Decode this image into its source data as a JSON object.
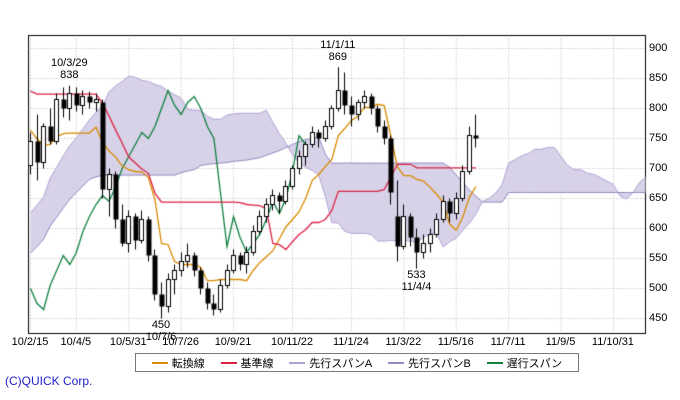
{
  "footer": {
    "copyright": "(C)QUICK Corp.",
    "color": "#2020cc"
  },
  "chart_data": {
    "type": "candlestick",
    "indicator": "ichimoku",
    "period": "weekly",
    "grid": true,
    "grid_color": "#b4b4b4",
    "cloud_color": "#d8d2e8",
    "candle_colors": {
      "up_fill": "#ffffff",
      "down_fill": "#000000",
      "stroke": "#000000"
    },
    "y_axis_side": "right",
    "y_ticks": [
      900,
      850,
      800,
      750,
      700,
      650,
      600,
      550,
      500,
      450
    ],
    "ylim": [
      425,
      920
    ],
    "x_ticks": [
      {
        "week": 0,
        "label": "10/2/15"
      },
      {
        "week": 7,
        "label": "10/4/5"
      },
      {
        "week": 15,
        "label": "10/5/31"
      },
      {
        "week": 23,
        "label": "10/7/26"
      },
      {
        "week": 31,
        "label": "10/9/21"
      },
      {
        "week": 40,
        "label": "10/11/22"
      },
      {
        "week": 49,
        "label": "11/1/24"
      },
      {
        "week": 57,
        "label": "11/3/22"
      },
      {
        "week": 65,
        "label": "11/5/16"
      },
      {
        "week": 73,
        "label": "11/7/11"
      },
      {
        "week": 81,
        "label": "11/9/5"
      },
      {
        "week": 89,
        "label": "11/10/31"
      }
    ],
    "annotations": [
      {
        "week": 6,
        "price": 838,
        "placement": "above",
        "lines": [
          "10/3/29",
          "838"
        ]
      },
      {
        "week": 47,
        "price": 869,
        "placement": "above",
        "lines": [
          "11/1/11",
          "869"
        ]
      },
      {
        "week": 20,
        "price": 450,
        "placement": "below",
        "lines": [
          "450",
          "10/7/6"
        ]
      },
      {
        "week": 59,
        "price": 533,
        "placement": "below",
        "lines": [
          "533",
          "11/4/4"
        ]
      }
    ],
    "candles": [
      [
        705,
        760,
        690,
        745
      ],
      [
        745,
        790,
        680,
        710
      ],
      [
        710,
        775,
        700,
        770
      ],
      [
        770,
        800,
        740,
        745
      ],
      [
        745,
        825,
        740,
        815
      ],
      [
        815,
        835,
        785,
        800
      ],
      [
        800,
        838,
        780,
        825
      ],
      [
        825,
        835,
        795,
        805
      ],
      [
        805,
        830,
        790,
        820
      ],
      [
        820,
        828,
        800,
        810
      ],
      [
        810,
        825,
        795,
        815
      ],
      [
        810,
        815,
        650,
        665
      ],
      [
        665,
        700,
        620,
        690
      ],
      [
        690,
        695,
        600,
        615
      ],
      [
        615,
        640,
        570,
        575
      ],
      [
        575,
        630,
        560,
        620
      ],
      [
        620,
        625,
        565,
        580
      ],
      [
        580,
        630,
        575,
        615
      ],
      [
        615,
        620,
        545,
        555
      ],
      [
        555,
        565,
        480,
        490
      ],
      [
        490,
        510,
        450,
        470
      ],
      [
        470,
        525,
        460,
        515
      ],
      [
        515,
        540,
        490,
        530
      ],
      [
        530,
        560,
        520,
        545
      ],
      [
        545,
        575,
        535,
        555
      ],
      [
        555,
        560,
        520,
        530
      ],
      [
        530,
        535,
        490,
        500
      ],
      [
        500,
        510,
        465,
        475
      ],
      [
        475,
        490,
        455,
        465
      ],
      [
        465,
        515,
        460,
        505
      ],
      [
        505,
        540,
        500,
        530
      ],
      [
        530,
        565,
        525,
        555
      ],
      [
        555,
        560,
        530,
        540
      ],
      [
        540,
        570,
        525,
        560
      ],
      [
        560,
        605,
        555,
        595
      ],
      [
        595,
        630,
        590,
        620
      ],
      [
        620,
        650,
        610,
        640
      ],
      [
        640,
        665,
        630,
        655
      ],
      [
        655,
        660,
        625,
        645
      ],
      [
        645,
        680,
        640,
        670
      ],
      [
        670,
        705,
        665,
        700
      ],
      [
        700,
        730,
        690,
        720
      ],
      [
        720,
        745,
        705,
        740
      ],
      [
        740,
        770,
        735,
        760
      ],
      [
        760,
        765,
        735,
        750
      ],
      [
        750,
        780,
        745,
        770
      ],
      [
        770,
        805,
        765,
        800
      ],
      [
        800,
        869,
        795,
        830
      ],
      [
        830,
        860,
        790,
        805
      ],
      [
        805,
        820,
        770,
        790
      ],
      [
        790,
        815,
        780,
        810
      ],
      [
        810,
        830,
        800,
        820
      ],
      [
        820,
        825,
        790,
        800
      ],
      [
        800,
        805,
        760,
        770
      ],
      [
        770,
        780,
        740,
        750
      ],
      [
        750,
        755,
        640,
        660
      ],
      [
        620,
        680,
        545,
        570
      ],
      [
        570,
        640,
        565,
        620
      ],
      [
        620,
        625,
        570,
        585
      ],
      [
        585,
        600,
        533,
        560
      ],
      [
        560,
        590,
        550,
        575
      ],
      [
        575,
        600,
        560,
        590
      ],
      [
        590,
        625,
        585,
        615
      ],
      [
        615,
        655,
        610,
        645
      ],
      [
        645,
        650,
        610,
        625
      ],
      [
        625,
        660,
        615,
        650
      ],
      [
        650,
        705,
        645,
        695
      ],
      [
        695,
        770,
        690,
        755
      ],
      [
        755,
        790,
        735,
        750
      ]
    ],
    "ichimoku_series": [
      {
        "key": "tenkan",
        "label": "転換線",
        "color": "#d98a00",
        "start_week": 0,
        "values": [
          764,
          749,
          739,
          740,
          753,
          758,
          759,
          759,
          759,
          759,
          769,
          744,
          729,
          719,
          704,
          698,
          695,
          694,
          685,
          648,
          575,
          573,
          545,
          540,
          540,
          540,
          535,
          513,
          513,
          515,
          515,
          515,
          515,
          513,
          530,
          543,
          553,
          563,
          583,
          603,
          615,
          628,
          650,
          680,
          690,
          703,
          715,
          755,
          767,
          780,
          787,
          802,
          802,
          807,
          805,
          755,
          703,
          688,
          688,
          682,
          679,
          669,
          657,
          644,
          607,
          597,
          619,
          652,
          670
        ]
      },
      {
        "key": "kijun",
        "label": "基準線",
        "color": "#dd2244",
        "start_week": 0,
        "values": [
          829,
          824,
          824,
          824,
          824,
          824,
          824,
          824,
          824,
          824,
          824,
          809,
          787,
          764,
          742,
          719,
          709,
          699,
          692,
          659,
          644,
          644,
          644,
          644,
          644,
          644,
          644,
          644,
          644,
          644,
          644,
          644,
          643,
          640,
          639,
          638,
          633,
          575,
          573,
          565,
          578,
          590,
          598,
          610,
          610,
          615,
          630,
          662,
          662,
          662,
          662,
          662,
          662,
          662,
          665,
          685,
          707,
          707,
          707,
          701,
          701,
          701,
          701,
          701,
          701,
          701,
          701,
          701,
          701
        ]
      },
      {
        "key": "senkou_a",
        "label": "先行スパンA",
        "color": "#b0a2d4",
        "start_week": 0,
        "values": [
          626,
          639,
          652,
          684,
          702,
          721,
          738,
          751,
          766,
          781,
          794,
          804,
          828,
          838,
          845,
          854,
          852,
          847,
          845,
          840,
          837,
          829,
          823,
          817,
          799,
          797,
          797,
          787,
          782,
          782,
          789,
          791,
          792,
          792,
          792,
          792,
          797,
          777,
          758,
          742,
          723,
          709,
          702,
          697,
          689,
          654,
          610,
          609,
          595,
          592,
          592,
          592,
          590,
          579,
          579,
          580,
          580,
          580,
          579,
          577,
          585,
          591,
          593,
          569,
          578,
          584,
          597,
          609,
          624,
          645,
          650,
          659,
          673,
          709,
          715,
          721,
          725,
          732,
          732,
          735,
          735,
          720,
          705,
          698,
          698,
          692,
          690,
          685,
          679,
          673,
          654,
          649,
          660,
          677,
          686
        ]
      },
      {
        "key": "senkou_b",
        "label": "先行スパンB",
        "color": "#9488c0",
        "start_week": 0,
        "values": [
          559,
          570,
          582,
          604,
          619,
          634,
          649,
          660,
          671,
          682,
          686,
          689,
          689,
          689,
          689,
          689,
          689,
          689,
          689,
          689,
          689,
          689,
          689,
          693,
          696,
          698,
          705,
          707,
          708,
          709,
          710,
          712,
          713,
          714,
          716,
          718,
          722,
          726,
          730,
          735,
          740,
          745,
          748,
          750,
          752,
          724,
          709,
          709,
          709,
          709,
          709,
          709,
          709,
          709,
          709,
          709,
          709,
          709,
          709,
          709,
          709,
          709,
          709,
          709,
          702,
          689,
          677,
          664,
          654,
          644,
          644,
          644,
          644,
          660,
          660,
          660,
          660,
          660,
          660,
          660,
          660,
          660,
          660,
          660,
          660,
          660,
          660,
          660,
          660,
          660,
          660,
          660,
          660,
          660,
          660
        ]
      },
      {
        "key": "chikou",
        "label": "遅行スパン",
        "color": "#108040",
        "start_week": 0,
        "values": [
          500,
          475,
          465,
          505,
          530,
          555,
          540,
          560,
          595,
          620,
          640,
          655,
          645,
          670,
          700,
          720,
          740,
          760,
          750,
          770,
          800,
          830,
          805,
          790,
          810,
          820,
          800,
          770,
          750,
          660,
          570,
          620,
          585,
          560,
          575,
          590,
          615,
          645,
          625,
          650,
          695,
          755,
          740
        ]
      }
    ]
  }
}
